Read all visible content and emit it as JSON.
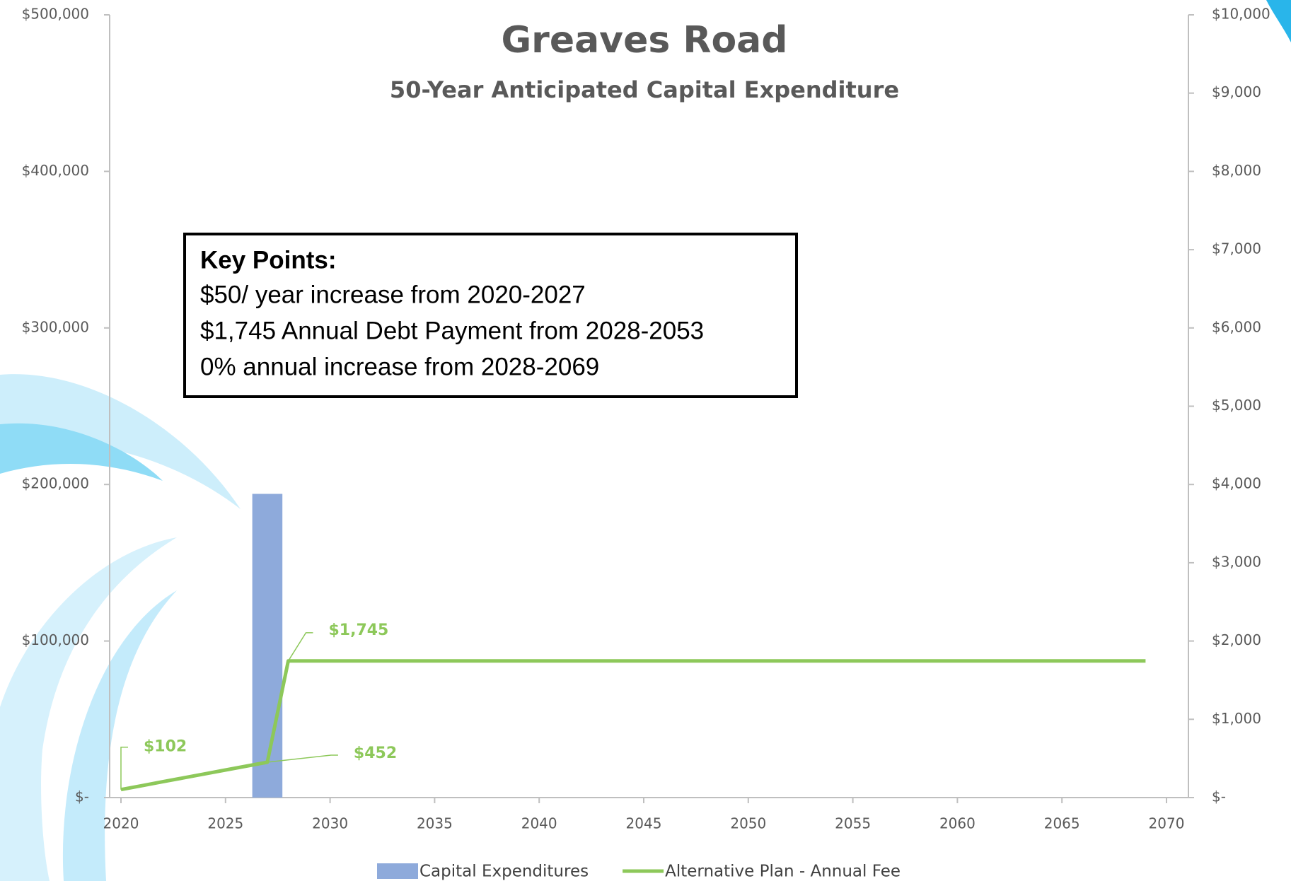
{
  "chart_data": {
    "type": "bar-line",
    "title": "Greaves Road",
    "subtitle": "50-Year Anticipated Capital Expenditure",
    "annotation": {
      "heading": "Key Points:",
      "lines": [
        "$50/ year increase from 2020-2027",
        "$1,745 Annual Debt Payment from 2028-2053",
        "0% annual increase from 2028-2069"
      ]
    },
    "x": [
      2020,
      2021,
      2022,
      2023,
      2024,
      2025,
      2026,
      2027,
      2028,
      2029,
      2030,
      2031,
      2032,
      2033,
      2034,
      2035,
      2036,
      2037,
      2038,
      2039,
      2040,
      2041,
      2042,
      2043,
      2044,
      2045,
      2046,
      2047,
      2048,
      2049,
      2050,
      2051,
      2052,
      2053,
      2054,
      2055,
      2056,
      2057,
      2058,
      2059,
      2060,
      2061,
      2062,
      2063,
      2064,
      2065,
      2066,
      2067,
      2068,
      2069
    ],
    "series": [
      {
        "name": "Capital Expenditures",
        "type": "bar",
        "color": "#8eaadb",
        "x": [
          2027
        ],
        "values": [
          194000
        ]
      },
      {
        "name": "Alternative Plan - Annual Fee",
        "type": "line",
        "axis": "y2",
        "color": "#8dc85a",
        "values": [
          102,
          152,
          202,
          252,
          302,
          352,
          402,
          452,
          1745,
          1745,
          1745,
          1745,
          1745,
          1745,
          1745,
          1745,
          1745,
          1745,
          1745,
          1745,
          1745,
          1745,
          1745,
          1745,
          1745,
          1745,
          1745,
          1745,
          1745,
          1745,
          1745,
          1745,
          1745,
          1745,
          1745,
          1745,
          1745,
          1745,
          1745,
          1745,
          1745,
          1745,
          1745,
          1745,
          1745,
          1745,
          1745,
          1745,
          1745,
          1745
        ],
        "value_labels": [
          "$102",
          null,
          null,
          null,
          null,
          null,
          null,
          "$452",
          "$1,745",
          null,
          null,
          null,
          null,
          null,
          null,
          null,
          null,
          null,
          null,
          null,
          null,
          null,
          null,
          null,
          null,
          null,
          null,
          null,
          null,
          null,
          null,
          null,
          null,
          null,
          null,
          null,
          null,
          null,
          null,
          null,
          null,
          null,
          null,
          null,
          null,
          null,
          null,
          null,
          null,
          null
        ]
      }
    ],
    "xlim": [
      2020,
      2070
    ],
    "xticks": [
      2020,
      2025,
      2030,
      2035,
      2040,
      2045,
      2050,
      2055,
      2060,
      2065,
      2070
    ],
    "ylim": [
      0,
      500000
    ],
    "yticks": [
      {
        "value": 0,
        "label": "$-"
      },
      {
        "value": 100000,
        "label": "$100,000"
      },
      {
        "value": 200000,
        "label": "$200,000"
      },
      {
        "value": 300000,
        "label": "$300,000"
      },
      {
        "value": 400000,
        "label": "$400,000"
      },
      {
        "value": 500000,
        "label": "$500,000"
      }
    ],
    "y2lim": [
      0,
      10000
    ],
    "y2ticks": [
      {
        "value": 0,
        "label": "$-"
      },
      {
        "value": 1000,
        "label": "$1,000"
      },
      {
        "value": 2000,
        "label": "$2,000"
      },
      {
        "value": 3000,
        "label": "$3,000"
      },
      {
        "value": 4000,
        "label": "$4,000"
      },
      {
        "value": 5000,
        "label": "$5,000"
      },
      {
        "value": 6000,
        "label": "$6,000"
      },
      {
        "value": 7000,
        "label": "$7,000"
      },
      {
        "value": 8000,
        "label": "$8,000"
      },
      {
        "value": 9000,
        "label": "$9,000"
      },
      {
        "value": 10000,
        "label": "$10,000"
      }
    ],
    "legend": "bottom"
  }
}
